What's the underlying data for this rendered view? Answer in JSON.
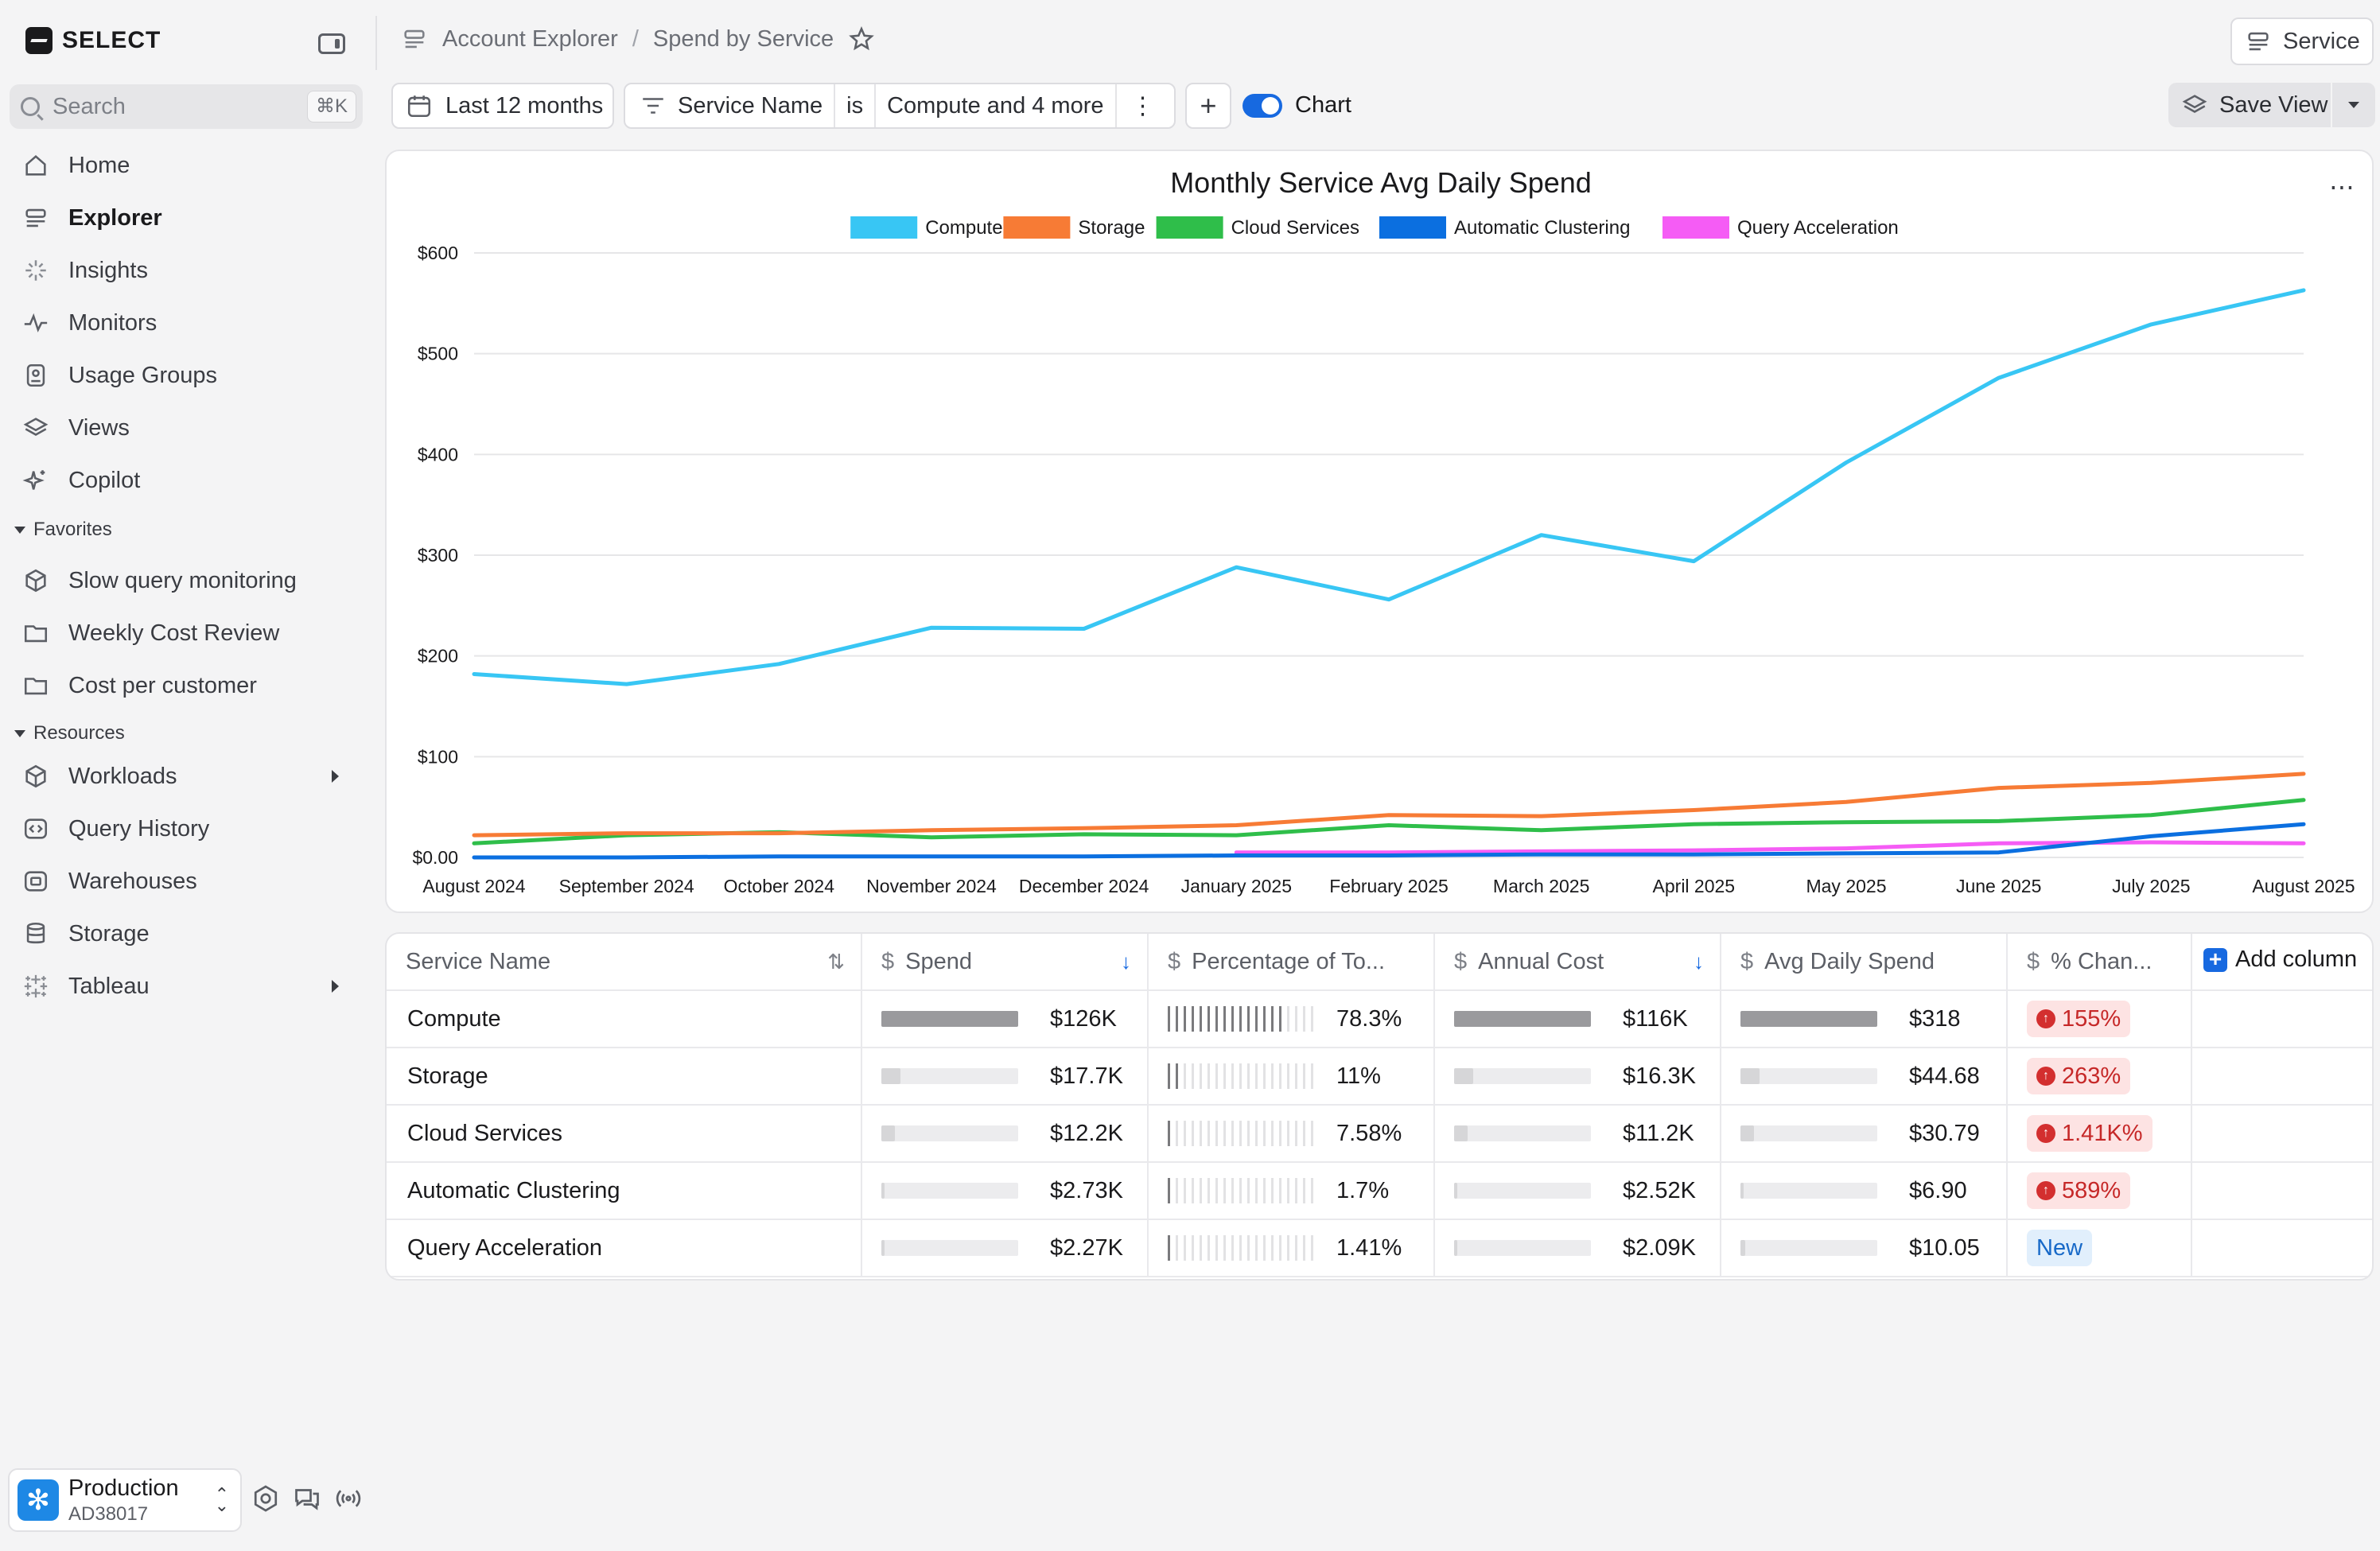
{
  "app": {
    "name": "SELECT"
  },
  "search": {
    "placeholder": "Search",
    "shortcut": "⌘K"
  },
  "nav": [
    {
      "label": "Home",
      "icon": "home-icon",
      "active": false
    },
    {
      "label": "Explorer",
      "icon": "explorer-icon",
      "active": true
    },
    {
      "label": "Insights",
      "icon": "insights-icon",
      "active": false
    },
    {
      "label": "Monitors",
      "icon": "monitors-icon",
      "active": false
    },
    {
      "label": "Usage Groups",
      "icon": "usage-groups-icon",
      "active": false
    },
    {
      "label": "Views",
      "icon": "views-icon",
      "active": false
    },
    {
      "label": "Copilot",
      "icon": "copilot-icon",
      "active": false
    }
  ],
  "favorites": {
    "title": "Favorites",
    "items": [
      {
        "label": "Slow query monitoring",
        "icon": "cube-icon"
      },
      {
        "label": "Weekly Cost Review",
        "icon": "folder-icon"
      },
      {
        "label": "Cost per customer",
        "icon": "folder-icon"
      }
    ]
  },
  "resources": {
    "title": "Resources",
    "items": [
      {
        "label": "Workloads",
        "icon": "cube-icon",
        "expandable": true
      },
      {
        "label": "Query History",
        "icon": "query-history-icon",
        "expandable": false
      },
      {
        "label": "Warehouses",
        "icon": "warehouse-icon",
        "expandable": false
      },
      {
        "label": "Storage",
        "icon": "database-icon",
        "expandable": false
      },
      {
        "label": "Tableau",
        "icon": "tableau-icon",
        "expandable": true
      }
    ]
  },
  "account": {
    "name": "Production",
    "id": "AD38017"
  },
  "breadcrumb": {
    "root": "Account Explorer",
    "separator": "/",
    "current": "Spend by Service"
  },
  "header": {
    "service_button": "Service"
  },
  "filters": {
    "date_range": "Last 12 months",
    "field": "Service Name",
    "operator": "is",
    "value": "Compute and 4 more",
    "chart_toggle_label": "Chart",
    "chart_toggle_on": true,
    "save_view": "Save View"
  },
  "colors": {
    "compute": "#38c6f4",
    "storage": "#f77b35",
    "cloud_services": "#2fbe4a",
    "automatic_clustering": "#0b6fe0",
    "query_acceleration": "#f55cf5",
    "accent": "#1769e0"
  },
  "chart_data": {
    "type": "line",
    "title": "Monthly Service Avg Daily Spend",
    "legend_position": "top-center",
    "grid": true,
    "ylim": [
      0,
      600
    ],
    "y_ticks": [
      "$0.00",
      "$100",
      "$200",
      "$300",
      "$400",
      "$500",
      "$600"
    ],
    "categories": [
      "August 2024",
      "September 2024",
      "October 2024",
      "November 2024",
      "December 2024",
      "January 2025",
      "February 2025",
      "March 2025",
      "April 2025",
      "May 2025",
      "June 2025",
      "July 2025",
      "August 2025"
    ],
    "series": [
      {
        "name": "Compute",
        "color": "#38c6f4",
        "values": [
          182,
          172,
          192,
          228,
          227,
          288,
          256,
          320,
          294,
          392,
          476,
          529,
          563
        ]
      },
      {
        "name": "Storage",
        "color": "#f77b35",
        "values": [
          22,
          24,
          24,
          27,
          29,
          32,
          42,
          41,
          47,
          55,
          69,
          74,
          83
        ]
      },
      {
        "name": "Cloud Services",
        "color": "#2fbe4a",
        "values": [
          14,
          22,
          25,
          20,
          23,
          22,
          32,
          27,
          33,
          35,
          36,
          42,
          57
        ]
      },
      {
        "name": "Automatic Clustering",
        "color": "#0b6fe0",
        "values": [
          0,
          0,
          1,
          1,
          1,
          2,
          2,
          3,
          3,
          4,
          5,
          21,
          33
        ]
      },
      {
        "name": "Query Acceleration",
        "color": "#f55cf5",
        "values": [
          null,
          null,
          null,
          null,
          null,
          5,
          5,
          6,
          7,
          9,
          14,
          15,
          14
        ]
      }
    ]
  },
  "table": {
    "columns": [
      {
        "label": "Service Name",
        "dollar": false,
        "sort": ""
      },
      {
        "label": "Spend",
        "dollar": true,
        "sort": "↓"
      },
      {
        "label": "Percentage of To...",
        "dollar": true,
        "sort": ""
      },
      {
        "label": "Annual Cost",
        "dollar": true,
        "sort": "↓"
      },
      {
        "label": "Avg Daily Spend",
        "dollar": true,
        "sort": ""
      },
      {
        "label": "% Chan...",
        "dollar": true,
        "sort": ""
      }
    ],
    "add_column": "Add column",
    "rows": [
      {
        "name": "Compute",
        "spend": "$126K",
        "spend_frac": 1.0,
        "pct": "78.3%",
        "pct_frac": 0.783,
        "annual": "$116K",
        "annual_frac": 1.0,
        "avg": "$318",
        "avg_frac": 1.0,
        "change": "155%",
        "change_type": "up"
      },
      {
        "name": "Storage",
        "spend": "$17.7K",
        "spend_frac": 0.14,
        "pct": "11%",
        "pct_frac": 0.11,
        "annual": "$16.3K",
        "annual_frac": 0.14,
        "avg": "$44.68",
        "avg_frac": 0.14,
        "change": "263%",
        "change_type": "up"
      },
      {
        "name": "Cloud Services",
        "spend": "$12.2K",
        "spend_frac": 0.097,
        "pct": "7.58%",
        "pct_frac": 0.0758,
        "annual": "$11.2K",
        "annual_frac": 0.097,
        "avg": "$30.79",
        "avg_frac": 0.097,
        "change": "1.41K%",
        "change_type": "up"
      },
      {
        "name": "Automatic Clustering",
        "spend": "$2.73K",
        "spend_frac": 0.022,
        "pct": "1.7%",
        "pct_frac": 0.017,
        "annual": "$2.52K",
        "annual_frac": 0.022,
        "avg": "$6.90",
        "avg_frac": 0.022,
        "change": "589%",
        "change_type": "up"
      },
      {
        "name": "Query Acceleration",
        "spend": "$2.27K",
        "spend_frac": 0.018,
        "pct": "1.41%",
        "pct_frac": 0.0141,
        "annual": "$2.09K",
        "annual_frac": 0.018,
        "avg": "$10.05",
        "avg_frac": 0.032,
        "change": "New",
        "change_type": "new"
      }
    ]
  }
}
